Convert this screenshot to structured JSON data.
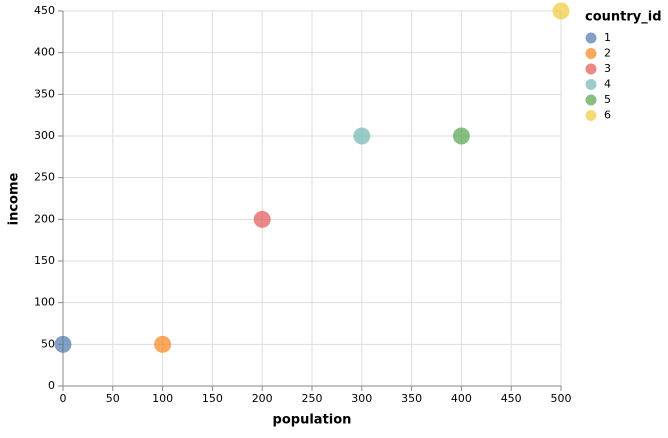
{
  "chart_data": {
    "type": "scatter",
    "x_label": "population",
    "y_label": "income",
    "legend_title": "country_id",
    "legend": "right",
    "grid": true,
    "xlim": [
      0,
      500
    ],
    "xticks": [
      0,
      50,
      100,
      150,
      200,
      250,
      300,
      350,
      400,
      450,
      500
    ],
    "ylim": [
      0,
      450
    ],
    "yticks": [
      0,
      50,
      100,
      150,
      200,
      250,
      300,
      350,
      400,
      450
    ],
    "series": [
      {
        "name": "1",
        "color": "#4c78a8",
        "x": [
          0
        ],
        "values": [
          50
        ]
      },
      {
        "name": "2",
        "color": "#f58518",
        "x": [
          100
        ],
        "values": [
          50
        ]
      },
      {
        "name": "3",
        "color": "#e45756",
        "x": [
          200
        ],
        "values": [
          200
        ]
      },
      {
        "name": "4",
        "color": "#72b7b2",
        "x": [
          300
        ],
        "values": [
          300
        ]
      },
      {
        "name": "5",
        "color": "#54a24b",
        "x": [
          400
        ],
        "values": [
          300
        ]
      },
      {
        "name": "6",
        "color": "#eeca3b",
        "x": [
          500
        ],
        "values": [
          450
        ]
      }
    ]
  }
}
